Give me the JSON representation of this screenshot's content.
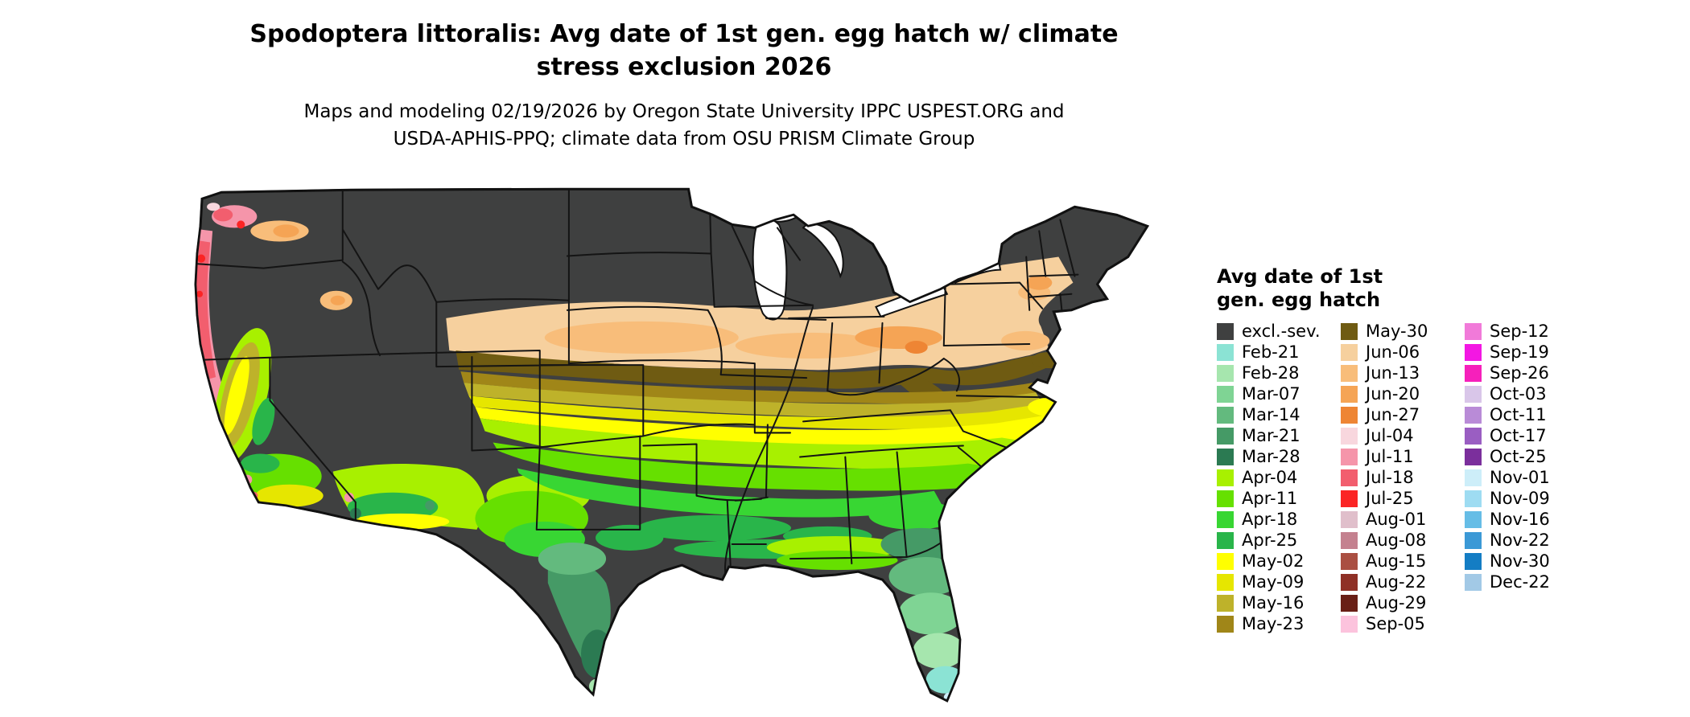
{
  "title": {
    "lines": [
      "Spodoptera littoralis: Avg date of 1st gen. egg hatch w/ climate",
      "stress exclusion 2026"
    ]
  },
  "subtitle": {
    "lines": [
      "Maps and modeling 02/19/2026 by Oregon State University IPPC USPEST.ORG and",
      "USDA-APHIS-PPQ; climate data from OSU PRISM Climate Group"
    ]
  },
  "legend": {
    "title_lines": [
      "Avg date of 1st",
      "gen. egg hatch"
    ],
    "columns": [
      [
        {
          "label": "excl.-sev.",
          "color_key": "excl_sev"
        },
        {
          "label": "Feb-21",
          "color_key": "feb21"
        },
        {
          "label": "Feb-28",
          "color_key": "feb28"
        },
        {
          "label": "Mar-07",
          "color_key": "mar07"
        },
        {
          "label": "Mar-14",
          "color_key": "mar14"
        },
        {
          "label": "Mar-21",
          "color_key": "mar21"
        },
        {
          "label": "Mar-28",
          "color_key": "mar28"
        },
        {
          "label": "Apr-04",
          "color_key": "apr04"
        },
        {
          "label": "Apr-11",
          "color_key": "apr11"
        },
        {
          "label": "Apr-18",
          "color_key": "apr18"
        },
        {
          "label": "Apr-25",
          "color_key": "apr25"
        },
        {
          "label": "May-02",
          "color_key": "may02"
        },
        {
          "label": "May-09",
          "color_key": "may09"
        },
        {
          "label": "May-16",
          "color_key": "may16"
        },
        {
          "label": "May-23",
          "color_key": "may23"
        }
      ],
      [
        {
          "label": "May-30",
          "color_key": "may30"
        },
        {
          "label": "Jun-06",
          "color_key": "jun06"
        },
        {
          "label": "Jun-13",
          "color_key": "jun13"
        },
        {
          "label": "Jun-20",
          "color_key": "jun20"
        },
        {
          "label": "Jun-27",
          "color_key": "jun27"
        },
        {
          "label": "Jul-04",
          "color_key": "jul04"
        },
        {
          "label": "Jul-11",
          "color_key": "jul11"
        },
        {
          "label": "Jul-18",
          "color_key": "jul18"
        },
        {
          "label": "Jul-25",
          "color_key": "jul25"
        },
        {
          "label": "Aug-01",
          "color_key": "aug01"
        },
        {
          "label": "Aug-08",
          "color_key": "aug08"
        },
        {
          "label": "Aug-15",
          "color_key": "aug15"
        },
        {
          "label": "Aug-22",
          "color_key": "aug22"
        },
        {
          "label": "Aug-29",
          "color_key": "aug29"
        },
        {
          "label": "Sep-05",
          "color_key": "sep05"
        }
      ],
      [
        {
          "label": "Sep-12",
          "color_key": "sep12"
        },
        {
          "label": "Sep-19",
          "color_key": "sep19"
        },
        {
          "label": "Sep-26",
          "color_key": "sep26"
        },
        {
          "label": "Oct-03",
          "color_key": "oct03"
        },
        {
          "label": "Oct-11",
          "color_key": "oct11"
        },
        {
          "label": "Oct-17",
          "color_key": "oct17"
        },
        {
          "label": "Oct-25",
          "color_key": "oct25"
        },
        {
          "label": "Nov-01",
          "color_key": "nov01"
        },
        {
          "label": "Nov-09",
          "color_key": "nov09"
        },
        {
          "label": "Nov-16",
          "color_key": "nov16"
        },
        {
          "label": "Nov-22",
          "color_key": "nov22"
        },
        {
          "label": "Nov-30",
          "color_key": "nov30"
        },
        {
          "label": "Dec-22",
          "color_key": "dec22"
        }
      ]
    ]
  },
  "colors": {
    "excl_sev": "#3f4040",
    "feb21": "#8be3d4",
    "feb28": "#a6e6ae",
    "mar07": "#7fd494",
    "mar14": "#63ba7e",
    "mar21": "#459a66",
    "mar28": "#2b7a52",
    "apr04": "#a8f000",
    "apr11": "#66e000",
    "apr18": "#38d633",
    "apr25": "#29b54a",
    "may02": "#ffff00",
    "may09": "#e6e600",
    "may16": "#beb22a",
    "may23": "#a08618",
    "may30": "#6f5b12",
    "jun06": "#f6d09e",
    "jun13": "#f8bd7a",
    "jun20": "#f5a455",
    "jun27": "#ee8534",
    "jul04": "#f8d7de",
    "jul11": "#f595aa",
    "jul18": "#f25e6e",
    "jul25": "#fb2424",
    "aug01": "#e0bfcb",
    "aug08": "#c4818f",
    "aug15": "#aa4f42",
    "aug22": "#8f3026",
    "aug29": "#691f16",
    "sep05": "#fcc3dd",
    "sep12": "#f17ad9",
    "sep19": "#f317e3",
    "sep26": "#f620bb",
    "oct03": "#d9c6e9",
    "oct11": "#b98bd7",
    "oct17": "#9a5ec2",
    "oct25": "#7b2f9c",
    "nov01": "#cdeef9",
    "nov09": "#9edcf2",
    "nov16": "#66bde6",
    "nov22": "#3b99d6",
    "nov30": "#147dc4",
    "dec22": "#a2c9e6"
  }
}
